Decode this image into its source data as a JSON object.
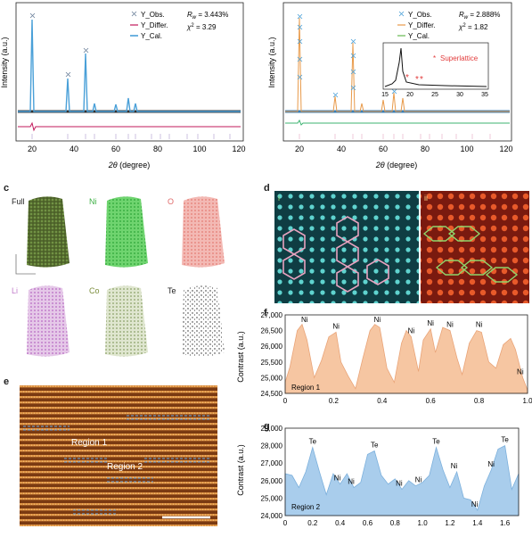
{
  "panel_labels": {
    "c": "c",
    "d": "d",
    "e": "e",
    "f": "f",
    "g": "g"
  },
  "colors": {
    "obs": "#5a9fd4",
    "differ": "#c2185b",
    "calc": "#4aa0d8",
    "differ_b": "#3cb371",
    "calc_b": "#7cc36a",
    "superlattice": "#e23b3b",
    "fill_f": "#f6c6a2",
    "fill_g": "#a9cdec",
    "hex_d1": "#e8a3c0",
    "hex_d2": "#8fd66b"
  },
  "xrd_a": {
    "legend": [
      "Y_Obs.",
      "Y_Differ.",
      "Y_Cal."
    ],
    "rw": "R",
    "rw_sub": "w",
    "rw_value": " = 3.443%",
    "chi": "χ",
    "chi_sup": "2",
    "chi_value": " = 3.29",
    "ylabel": "Intensity (a.u.)",
    "xlabel_theta": "2θ",
    "xlabel_rest": " (degree)",
    "xticks": [
      "20",
      "40",
      "60",
      "80",
      "100",
      "120"
    ]
  },
  "xrd_b": {
    "legend": [
      "Y_Obs.",
      "Y_Differ.",
      "Y_Cal."
    ],
    "rw": "R",
    "rw_sub": "w",
    "rw_value": " = 2.888%",
    "chi": "χ",
    "chi_sup": "2",
    "chi_value": " = 1.82",
    "ylabel": "Intensity (a.u.)",
    "xlabel_theta": "2θ",
    "xlabel_rest": " (degree)",
    "xticks": [
      "20",
      "40",
      "60",
      "80",
      "100",
      "120"
    ],
    "inset_xticks": [
      "15",
      "20",
      "25",
      "30",
      "35"
    ],
    "superlattice_label": "Superlattice",
    "star": "*"
  },
  "apt": {
    "labels": [
      "Full",
      "Ni",
      "O",
      "Li",
      "Co",
      "Te"
    ]
  },
  "stem_d": {
    "left_label": "i",
    "right_label": "ii"
  },
  "stem_e": {
    "region1": "Region 1",
    "region2": "Region 2"
  },
  "chart_data": [
    {
      "type": "line",
      "title": "",
      "xlabel": "",
      "ylabel": "Contrast (a.u.)",
      "region_label": "Region 1",
      "xlim": [
        0,
        1.0
      ],
      "ylim": [
        24500,
        27000
      ],
      "xticks": [
        "0",
        "0.2",
        "0.4",
        "0.6",
        "0.8",
        "1.0"
      ],
      "yticks": [
        "24,500",
        "25,000",
        "25,500",
        "26,000",
        "26,500",
        "27,000"
      ],
      "x": [
        0,
        0.02,
        0.05,
        0.07,
        0.09,
        0.12,
        0.15,
        0.18,
        0.21,
        0.23,
        0.26,
        0.29,
        0.32,
        0.35,
        0.37,
        0.39,
        0.42,
        0.45,
        0.48,
        0.5,
        0.52,
        0.55,
        0.57,
        0.6,
        0.62,
        0.65,
        0.68,
        0.71,
        0.73,
        0.76,
        0.79,
        0.81,
        0.84,
        0.87,
        0.9,
        0.93,
        0.95,
        0.98,
        1.0
      ],
      "y": [
        24850,
        25350,
        26500,
        26700,
        26200,
        25000,
        25550,
        26300,
        26450,
        25500,
        25050,
        24650,
        25600,
        26500,
        26700,
        26600,
        25300,
        24850,
        26100,
        26500,
        26300,
        25200,
        26200,
        26550,
        25800,
        26600,
        26500,
        25600,
        25100,
        26100,
        26500,
        26450,
        25500,
        25300,
        26050,
        26250,
        25900,
        25000,
        24600
      ],
      "annotations": [
        "Ni",
        "Ni",
        "Ni",
        "Ni",
        "Ni",
        "Ni",
        "Ni",
        "Ni"
      ],
      "annotation_x": [
        0.08,
        0.21,
        0.38,
        0.52,
        0.6,
        0.68,
        0.8,
        0.97
      ]
    },
    {
      "type": "line",
      "title": "",
      "xlabel": "",
      "ylabel": "Contrast (a.u.)",
      "region_label": "Region 2",
      "xlim": [
        0,
        1.7
      ],
      "ylim": [
        24000,
        29000
      ],
      "xticks": [
        "0",
        "0.2",
        "0.4",
        "0.6",
        "0.8",
        "1.0",
        "1.2",
        "1.4",
        "1.6"
      ],
      "yticks": [
        "24,000",
        "25,000",
        "26,000",
        "27,000",
        "28,000",
        "29,000"
      ],
      "x": [
        0,
        0.05,
        0.1,
        0.15,
        0.2,
        0.25,
        0.3,
        0.35,
        0.4,
        0.45,
        0.5,
        0.55,
        0.6,
        0.65,
        0.7,
        0.75,
        0.8,
        0.85,
        0.9,
        0.95,
        1.0,
        1.05,
        1.1,
        1.15,
        1.2,
        1.25,
        1.3,
        1.35,
        1.4,
        1.45,
        1.5,
        1.55,
        1.6,
        1.65,
        1.7
      ],
      "y": [
        26400,
        26300,
        25600,
        26500,
        27900,
        26500,
        25200,
        26400,
        25800,
        26400,
        25600,
        25900,
        27500,
        27700,
        26300,
        25800,
        26100,
        25500,
        26000,
        25700,
        25900,
        26300,
        27900,
        26600,
        25600,
        26500,
        25000,
        24900,
        24300,
        25700,
        26600,
        27800,
        28000,
        25500,
        26400
      ],
      "annotations": [
        "Te",
        "Ni",
        "Ni",
        "Te",
        "Ni",
        "Ni",
        "Te",
        "Ni",
        "Ni",
        "Ni",
        "Te"
      ],
      "annotation_x": [
        0.2,
        0.38,
        0.48,
        0.65,
        0.83,
        0.97,
        1.1,
        1.23,
        1.38,
        1.5,
        1.6
      ]
    }
  ]
}
